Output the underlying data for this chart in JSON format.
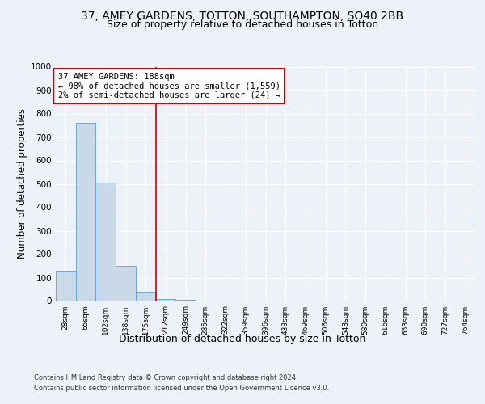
{
  "title1": "37, AMEY GARDENS, TOTTON, SOUTHAMPTON, SO40 2BB",
  "title2": "Size of property relative to detached houses in Totton",
  "xlabel": "Distribution of detached houses by size in Totton",
  "ylabel": "Number of detached properties",
  "footer1": "Contains HM Land Registry data © Crown copyright and database right 2024.",
  "footer2": "Contains public sector information licensed under the Open Government Licence v3.0.",
  "bins": [
    "28sqm",
    "65sqm",
    "102sqm",
    "138sqm",
    "175sqm",
    "212sqm",
    "249sqm",
    "285sqm",
    "322sqm",
    "359sqm",
    "396sqm",
    "433sqm",
    "469sqm",
    "506sqm",
    "543sqm",
    "580sqm",
    "616sqm",
    "653sqm",
    "690sqm",
    "727sqm",
    "764sqm"
  ],
  "values": [
    125,
    760,
    505,
    150,
    35,
    10,
    5,
    0,
    0,
    0,
    0,
    0,
    0,
    0,
    0,
    0,
    0,
    0,
    0,
    0,
    0
  ],
  "bar_color": "#c9d9e8",
  "bar_edge_color": "#5b9bd5",
  "vline_x": 4.5,
  "vline_color": "#cc0000",
  "annotation_text": "37 AMEY GARDENS: 188sqm\n← 98% of detached houses are smaller (1,559)\n2% of semi-detached houses are larger (24) →",
  "annotation_box_color": "#ffffff",
  "annotation_box_edge": "#cc0000",
  "ylim": [
    0,
    1000
  ],
  "yticks": [
    0,
    100,
    200,
    300,
    400,
    500,
    600,
    700,
    800,
    900,
    1000
  ],
  "bg_color": "#edf2f8",
  "plot_bg_color": "#edf2f8",
  "grid_color": "#ffffff",
  "title1_fontsize": 10,
  "title2_fontsize": 9,
  "xlabel_fontsize": 9,
  "ylabel_fontsize": 8.5,
  "annotation_fontsize": 7.5
}
